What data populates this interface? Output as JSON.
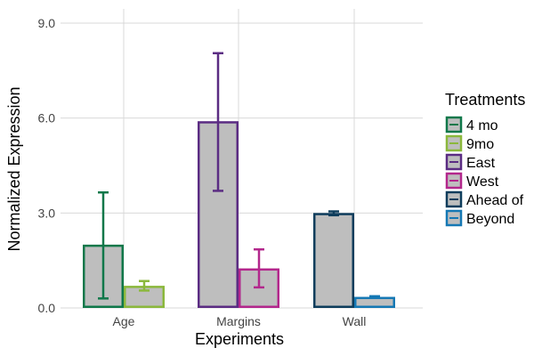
{
  "chart_data": {
    "type": "bar",
    "xlabel": "Experiments",
    "ylabel": "Normalized Expression",
    "ylim": [
      0,
      9.4
    ],
    "y_ticks": [
      0,
      3,
      6,
      9
    ],
    "y_tick_labels": [
      "0.0",
      "3.0",
      "6.0",
      "9.0"
    ],
    "grid": true,
    "bar_fill": "#bebebe",
    "legend": {
      "title": "Treatments",
      "placement": "right"
    },
    "categories": [
      "Age",
      "Margins",
      "Wall"
    ],
    "series": [
      {
        "name": "4 mo",
        "category": "Age",
        "value": 2.0,
        "err_low": 0.3,
        "err_high": 3.65,
        "color": "#10784a"
      },
      {
        "name": "9mo",
        "category": "Age",
        "value": 0.7,
        "err_low": 0.55,
        "err_high": 0.85,
        "color": "#8bb83c"
      },
      {
        "name": "East",
        "category": "Margins",
        "value": 5.9,
        "err_low": 3.7,
        "err_high": 8.05,
        "color": "#5b2c83"
      },
      {
        "name": "West",
        "category": "Margins",
        "value": 1.25,
        "err_low": 0.65,
        "err_high": 1.85,
        "color": "#b3278c"
      },
      {
        "name": "Ahead of",
        "category": "Wall",
        "value": 3.0,
        "err_low": 2.93,
        "err_high": 3.05,
        "color": "#0e3d5c"
      },
      {
        "name": "Beyond",
        "category": "Wall",
        "value": 0.35,
        "err_low": 0.33,
        "err_high": 0.37,
        "color": "#1578b4"
      }
    ]
  }
}
